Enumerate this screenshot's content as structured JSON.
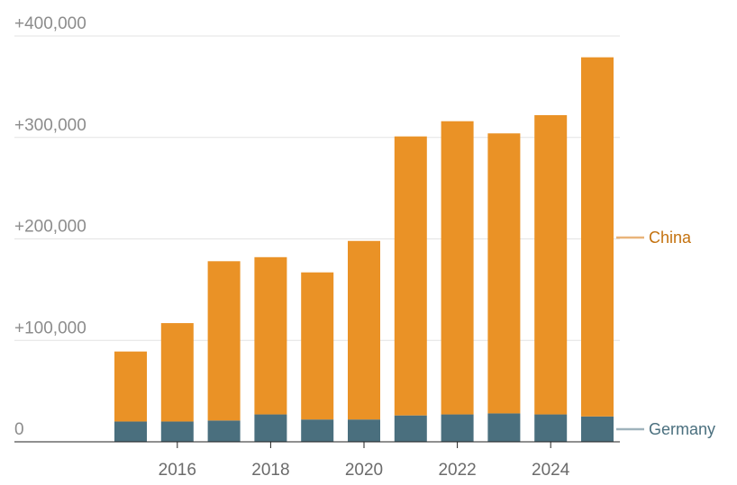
{
  "chart_data": {
    "type": "bar",
    "stacked": true,
    "x": [
      2015,
      2016,
      2017,
      2018,
      2019,
      2020,
      2021,
      2022,
      2023,
      2024,
      2025
    ],
    "x_tick_labels": [
      "2016",
      "2018",
      "2020",
      "2022",
      "2024"
    ],
    "y_tick_labels": [
      "0",
      "+100,000",
      "+200,000",
      "+300,000",
      "+400,000"
    ],
    "ylim": [
      0,
      400000
    ],
    "grid": true,
    "series": [
      {
        "name": "Germany",
        "color": "#4a6f7e",
        "legend_color": "#9fb3bc",
        "values": [
          20000,
          20000,
          21000,
          27000,
          22000,
          22000,
          26000,
          27000,
          28000,
          27000,
          25000
        ]
      },
      {
        "name": "China",
        "color": "#ea9226",
        "legend_color": "#e9b47a",
        "label_color": "#c4720f",
        "values": [
          69000,
          97000,
          157000,
          155000,
          145000,
          176000,
          275000,
          289000,
          276000,
          295000,
          354000
        ]
      }
    ]
  }
}
